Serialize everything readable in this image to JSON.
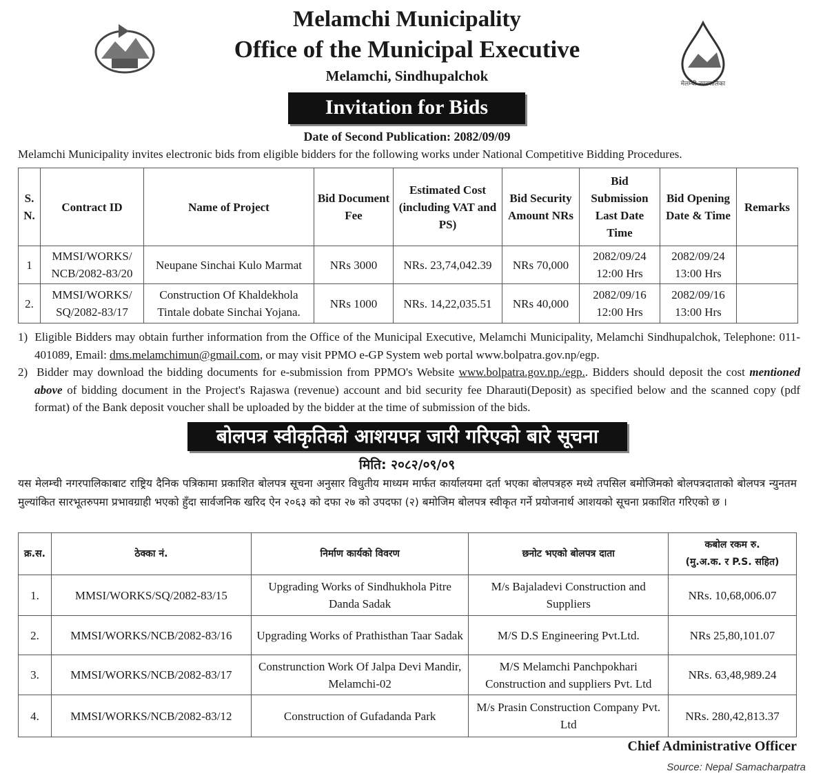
{
  "header": {
    "org": "Melamchi Municipality",
    "office": "Office of the Municipal Executive",
    "location": "Melamchi, Sindhupalchok",
    "right_logo_text": "मेलम्ची नगरपालिका"
  },
  "notice_title": "Invitation for Bids",
  "publication_date": "Date of Second Publication: 2082/09/09",
  "intro": "Melamchi Municipality invites electronic bids from eligible bidders for the following works under National Competitive Bidding Procedures.",
  "bids_table": {
    "headers": [
      "S. N.",
      "Contract ID",
      "Name of Project",
      "Bid Document Fee",
      "Estimated Cost (including VAT and PS)",
      "Bid Security Amount NRs",
      "Bid Submission Last Date Time",
      "Bid Opening Date & Time",
      "Remarks"
    ],
    "rows": [
      [
        "1",
        "MMSI/WORKS/ NCB/2082-83/20",
        "Neupane Sinchai Kulo Marmat",
        "NRs 3000",
        "NRs. 23,74,042.39",
        "NRs 70,000",
        "2082/09/24 12:00 Hrs",
        "2082/09/24 13:00 Hrs",
        ""
      ],
      [
        "2.",
        "MMSI/WORKS/ SQ/2082-83/17",
        "Construction Of Khaldekhola Tintale dobate Sinchai Yojana.",
        "NRs 1000",
        "NRs. 14,22,035.51",
        "NRs 40,000",
        "2082/09/16 12:00 Hrs",
        "2082/09/16 13:00 Hrs",
        ""
      ]
    ]
  },
  "notes": [
    {
      "num": "1)",
      "text": "Eligible Bidders may obtain further information from the Office of the Municipal Executive, Melamchi Municipality, Melamchi Sindhupalchok, Telephone: 011- 401089, Email: ",
      "email": "dms.melamchimun@gmail.com",
      "text2": ", or may visit PPMO e-GP System web portal www.bolpatra.gov.np/egp."
    },
    {
      "num": "2)",
      "text": "Bidder may download the bidding documents for e-submission from PPMO's Website ",
      "link": "www.bolpatra.gov.np./egp.",
      "text2": ". Bidders should deposit the cost ",
      "emph": "mentioned above",
      "text3": " of bidding document in the Project's Rajaswa (revenue) account and bid security fee Dharauti(Deposit) as specified below and the scanned copy (pdf format) of the Bank deposit voucher shall be uploaded by the bidder at the time of submission of the bids."
    }
  ],
  "loi": {
    "title": "बोलपत्र स्वीकृतिको आशयपत्र जारी गरिएको बारे सूचना",
    "date": "मिति: २०८२/०९/०९",
    "body": "यस मेलम्ची नगरपालिकाबाट राष्ट्रिय दैनिक पत्रिकामा प्रकाशित बोलपत्र सूचना अनुसार विधुतीय माध्यम मार्फत कार्यालयमा दर्ता भएका बोलपत्रहरु मध्ये तपसिल बमोजिमको बोलपत्रदाताको बोलपत्र न्युनतम मुल्यांकित सारभूतरुपमा प्रभावग्राही भएको हुँदा सार्वजनिक खरिद ऐन २०६३ को दफा २७ को उपदफा (२) बमोजिम बोलपत्र स्वीकृत गर्ने प्रयोजनार्थ आशयको सूचना प्रकाशित गरिएको छ ।",
    "headers": [
      "क्र.स.",
      "ठेक्का नं.",
      "निर्माण कार्यको विवरण",
      "छनोट भएको बोलपत्र दाता",
      "कबोल रकम रु.",
      "(मु.अ.क. र P.S. सहित)"
    ],
    "rows": [
      [
        "1.",
        "MMSI/WORKS/SQ/2082-83/15",
        "Upgrading Works of Sindhukhola Pitre Danda Sadak",
        "M/s  Bajaladevi Construction and Suppliers",
        "NRs. 10,68,006.07"
      ],
      [
        "2.",
        "MMSI/WORKS/NCB/2082-83/16",
        "Upgrading Works of Prathisthan Taar Sadak",
        "M/S D.S Engineering Pvt.Ltd.",
        "NRs  25,80,101.07"
      ],
      [
        "3.",
        "MMSI/WORKS/NCB/2082-83/17",
        "Construnction Work Of Jalpa Devi Mandir, Melamchi-02",
        "M/S Melamchi Panchpokhari Construction and suppliers Pvt. Ltd",
        "NRs. 63,48,989.24"
      ],
      [
        "4.",
        "MMSI/WORKS/NCB/2082-83/12",
        "Construction of Gufadanda Park",
        "M/s  Prasin Construction Company Pvt. Ltd",
        "NRs. 280,42,813.37"
      ]
    ]
  },
  "signatory": "Chief Administrative Officer",
  "source": "Source: Nepal Samacharpatra"
}
